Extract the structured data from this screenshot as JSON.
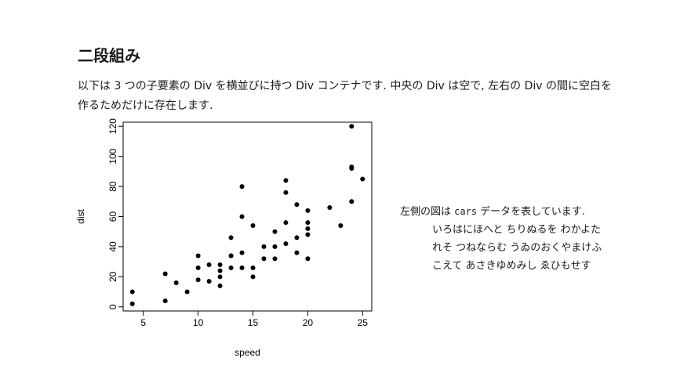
{
  "slide": {
    "title": "二段組み",
    "intro": "以下は 3 つの子要素の Div を横並びに持つ Div コンテナです. 中央の Div は空で, 左右の Div の間に空白を作るためだけに存在します."
  },
  "caption": {
    "before": "左側の図は ",
    "code": "cars",
    "after": " データを表しています.",
    "poem_lines": [
      "いろはにほへと ちりぬるを わかよた",
      "れそ つねならむ うゐのおくやまけふ",
      "こえて あさきゆめみし ゑひもせす"
    ]
  },
  "chart_data": {
    "type": "scatter",
    "xlabel": "speed",
    "ylabel": "dist",
    "xlim": [
      3.16,
      25.84
    ],
    "ylim": [
      -2.72,
      122.72
    ],
    "x_ticks": [
      5,
      10,
      15,
      20,
      25
    ],
    "y_ticks": [
      0,
      20,
      40,
      60,
      80,
      100,
      120
    ],
    "grid": false,
    "legend": "none",
    "color": "#000000",
    "series": [
      {
        "x": [
          4,
          4,
          7,
          7,
          8,
          9,
          10,
          10,
          10,
          11,
          11,
          12,
          12,
          12,
          12,
          13,
          13,
          13,
          13,
          14,
          14,
          14,
          14,
          15,
          15,
          15,
          16,
          16,
          17,
          17,
          17,
          18,
          18,
          18,
          18,
          19,
          19,
          19,
          20,
          20,
          20,
          20,
          20,
          22,
          23,
          24,
          24,
          24,
          24,
          25
        ],
        "y": [
          2,
          10,
          4,
          22,
          16,
          10,
          18,
          26,
          34,
          17,
          28,
          14,
          20,
          24,
          28,
          26,
          34,
          34,
          46,
          26,
          36,
          60,
          80,
          20,
          26,
          54,
          32,
          40,
          32,
          40,
          50,
          42,
          56,
          76,
          84,
          36,
          46,
          68,
          32,
          48,
          52,
          56,
          64,
          66,
          54,
          70,
          92,
          93,
          120,
          85
        ]
      }
    ]
  }
}
